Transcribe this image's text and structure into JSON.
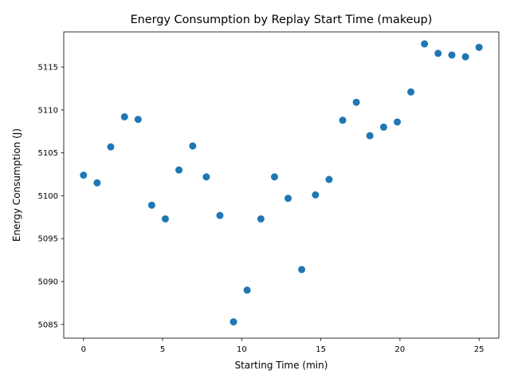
{
  "chart_data": {
    "type": "scatter",
    "title": "Energy Consumption by Replay Start Time (makeup)",
    "xlabel": "Starting Time (min)",
    "ylabel": "Energy Consumption (J)",
    "xlim": [
      -1.25,
      26.25
    ],
    "ylim": [
      5083.4,
      5119.1
    ],
    "xticks": [
      0,
      5,
      10,
      15,
      20,
      25
    ],
    "yticks": [
      5085,
      5090,
      5095,
      5100,
      5105,
      5110,
      5115
    ],
    "grid": false,
    "color": "#1f77b4",
    "x": [
      0,
      0.86,
      1.72,
      2.59,
      3.45,
      4.31,
      5.17,
      6.03,
      6.9,
      7.76,
      8.62,
      9.48,
      10.34,
      11.21,
      12.07,
      12.93,
      13.79,
      14.66,
      15.52,
      16.38,
      17.24,
      18.1,
      18.97,
      19.83,
      20.69,
      21.55,
      22.41,
      23.28,
      24.14,
      25
    ],
    "y": [
      5102.4,
      5101.5,
      5105.7,
      5109.2,
      5108.9,
      5098.9,
      5097.3,
      5103.0,
      5105.8,
      5102.2,
      5097.7,
      5085.3,
      5089.0,
      5097.3,
      5102.2,
      5099.7,
      5091.4,
      5100.1,
      5101.9,
      5108.8,
      5110.9,
      5107.0,
      5108.0,
      5108.6,
      5112.1,
      5117.7,
      5116.6,
      5116.4,
      5116.2,
      5117.3
    ]
  }
}
